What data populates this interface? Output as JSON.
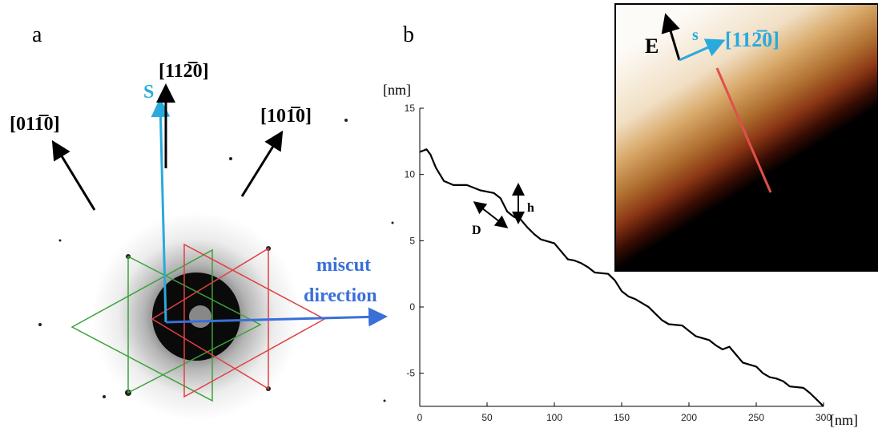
{
  "panel_a": {
    "panel_label": "a",
    "direction_01": "[011̅0]",
    "direction_11": "[112̅0]",
    "direction_10": "[101̅0]",
    "s_label": "S",
    "miscut_label": [
      "miscut",
      "direction"
    ]
  },
  "chart_data": {
    "type": "line",
    "panel_label": "b",
    "y_label": "[nm]",
    "x_label": "[nm]",
    "x": [
      0,
      5,
      8,
      12,
      18,
      25,
      35,
      45,
      55,
      60,
      65,
      70,
      75,
      80,
      85,
      90,
      100,
      105,
      110,
      115,
      120,
      125,
      130,
      140,
      145,
      150,
      155,
      160,
      170,
      175,
      180,
      185,
      195,
      200,
      205,
      215,
      220,
      225,
      230,
      235,
      240,
      250,
      255,
      260,
      265,
      270,
      275,
      285,
      290,
      295,
      300
    ],
    "values": [
      11.7,
      11.9,
      11.5,
      10.5,
      9.5,
      9.2,
      9.2,
      8.8,
      8.6,
      8.2,
      7.2,
      6.8,
      6.6,
      6.0,
      5.5,
      5.1,
      4.8,
      4.2,
      3.6,
      3.5,
      3.3,
      3.0,
      2.6,
      2.5,
      2.0,
      1.2,
      0.8,
      0.6,
      0.0,
      -0.5,
      -1.0,
      -1.3,
      -1.4,
      -1.8,
      -2.2,
      -2.5,
      -2.9,
      -3.2,
      -3.0,
      -3.6,
      -4.2,
      -4.5,
      -5.0,
      -5.3,
      -5.4,
      -5.6,
      -6.0,
      -6.1,
      -6.5,
      -7.0,
      -7.5
    ],
    "color": "#000000",
    "xlim": [
      0,
      300
    ],
    "xticks": [
      0,
      50,
      100,
      150,
      200,
      250,
      300
    ],
    "ylim": [
      -7.5,
      15
    ],
    "yticks": [
      -5,
      0,
      5,
      10,
      15
    ],
    "annotations": [
      "h",
      "D"
    ],
    "inset": {
      "e_label": "E",
      "s_label": "s",
      "direction": "[112̅0]"
    }
  }
}
